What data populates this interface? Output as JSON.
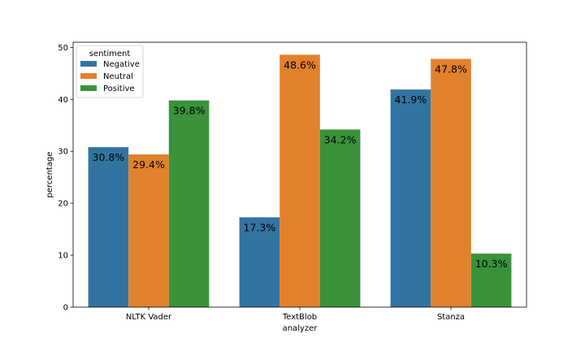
{
  "chart_data": {
    "type": "bar",
    "title": "",
    "xlabel": "analyzer",
    "ylabel": "percentage",
    "categories": [
      "NLTK Vader",
      "TextBlob",
      "Stanza"
    ],
    "ylim": [
      0,
      51
    ],
    "yticks": [
      0,
      10,
      20,
      30,
      40,
      50
    ],
    "grid": false,
    "legend": {
      "title": "sentiment",
      "placement": "top-left"
    },
    "series": [
      {
        "name": "Negative",
        "color": "#3274a1",
        "values": [
          30.8,
          17.3,
          41.9
        ],
        "labels": [
          "30.8%",
          "17.3%",
          "41.9%"
        ]
      },
      {
        "name": "Neutral",
        "color": "#e1812c",
        "values": [
          29.4,
          48.6,
          47.8
        ],
        "labels": [
          "29.4%",
          "48.6%",
          "47.8%"
        ]
      },
      {
        "name": "Positive",
        "color": "#3a923a",
        "values": [
          39.8,
          34.2,
          10.3
        ],
        "labels": [
          "39.8%",
          "34.2%",
          "10.3%"
        ]
      }
    ]
  }
}
